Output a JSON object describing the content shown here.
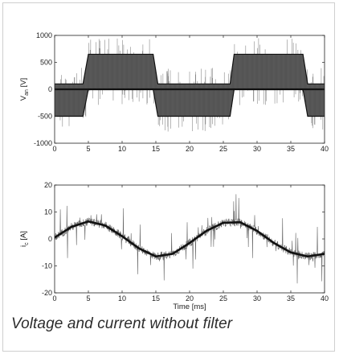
{
  "caption": "Voltage and current without filter",
  "chart_data": [
    {
      "type": "line",
      "title": "",
      "ylabel": "V",
      "ylabel_sub": "an",
      "ylabel_unit": " [V]",
      "xlabel": "",
      "xlim": [
        0,
        40
      ],
      "ylim": [
        -1000,
        1000
      ],
      "xticks": [
        0,
        5,
        10,
        15,
        20,
        25,
        30,
        35,
        40
      ],
      "yticks": [
        -1000,
        -500,
        0,
        500,
        1000
      ],
      "grid": false,
      "series": [
        {
          "description": "phase voltage (PWM switching, envelope per segment)",
          "x": [
            0,
            4.2,
            5.0,
            14.6,
            15.3,
            26.0,
            26.6,
            36.8,
            37.5,
            40
          ],
          "y_high": [
            100,
            100,
            650,
            650,
            100,
            100,
            650,
            650,
            100,
            100
          ],
          "y_low": [
            -500,
            -500,
            0,
            0,
            -500,
            -500,
            0,
            0,
            -500,
            -500
          ],
          "color": "#111111"
        }
      ]
    },
    {
      "type": "line",
      "title": "",
      "ylabel": "i",
      "ylabel_sub": "c",
      "ylabel_unit": " [A]",
      "xlabel": "Time [ms]",
      "xlim": [
        0,
        40
      ],
      "ylim": [
        -20,
        20
      ],
      "xticks": [
        0,
        5,
        10,
        15,
        20,
        25,
        30,
        35,
        40
      ],
      "yticks": [
        -20,
        -10,
        0,
        10,
        20
      ],
      "grid": false,
      "series": [
        {
          "description": "phase current (fundamental)",
          "x": [
            0,
            2.5,
            5,
            7.5,
            10,
            12.5,
            15,
            17.5,
            20,
            22.5,
            25,
            27.5,
            30,
            32.5,
            35,
            37.5,
            40
          ],
          "y": [
            0.5,
            4.5,
            6.5,
            5.0,
            1.0,
            -3.5,
            -6.5,
            -5.5,
            -1.5,
            3.0,
            6.0,
            6.2,
            3.0,
            -1.5,
            -5.0,
            -6.5,
            -5.5
          ],
          "color": "#111111"
        }
      ]
    }
  ]
}
